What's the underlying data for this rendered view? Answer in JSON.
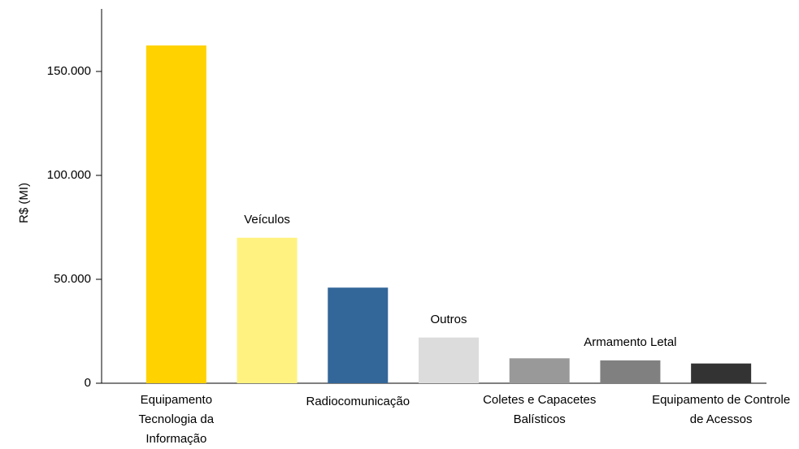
{
  "chart_data": {
    "type": "bar",
    "y_label": "R$ (MI)",
    "categories": [
      "Equipamento Tecnologia da Informação",
      "Veículos",
      "Radiocomunicação",
      "Outros",
      "Coletes e Capacetes Balísticos",
      "Armamento Letal",
      "Equipamento de Controle de Acessos"
    ],
    "values": [
      162500,
      70000,
      46000,
      22000,
      12000,
      11000,
      9500
    ],
    "colors": [
      "#ffd200",
      "#fff280",
      "#336699",
      "#dcdcdc",
      "#999999",
      "#808080",
      "#333333"
    ],
    "ylim": [
      0,
      180000
    ],
    "yticks": [
      0,
      {
        "value": 50000,
        "label": "50.000"
      },
      {
        "value": 100000,
        "label": "100.000"
      },
      {
        "value": 150000,
        "label": "150.000"
      }
    ],
    "grid": false
  }
}
